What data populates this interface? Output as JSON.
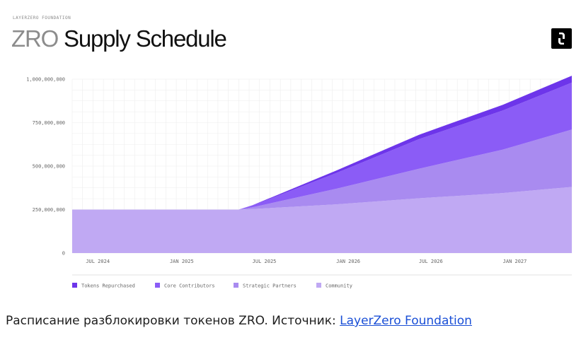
{
  "header": {
    "org": "LAYERZERO FOUNDATION",
    "title_light": "ZRO",
    "title_main": "Supply Schedule",
    "logo_icon": "layerzero-logo-icon"
  },
  "caption": {
    "text": "Расписание разблокировки токенов ZRO. Источник: ",
    "link": "LayerZero Foundation"
  },
  "chart_data": {
    "type": "area",
    "stacked": true,
    "x_tick_labels": [
      "JUL 2024",
      "JAN 2025",
      "JUL 2025",
      "JAN 2026",
      "JUL 2026",
      "JAN 2027"
    ],
    "x": [
      "2024-06",
      "2024-07",
      "2025-01",
      "2025-06",
      "2025-07",
      "2026-01",
      "2026-07",
      "2027-01",
      "2027-06"
    ],
    "y_ticks": [
      0,
      250000000,
      500000000,
      750000000,
      1000000000
    ],
    "y_tick_labels": [
      "0",
      "250,000,000",
      "500,000,000",
      "750,000,000",
      "1,000,000,000"
    ],
    "ylim": [
      0,
      1000000000
    ],
    "grid": true,
    "legend_position": "bottom-left",
    "series": [
      {
        "name": "Community",
        "color": "#c0a9f3",
        "values": [
          250000000,
          250000000,
          250000000,
          250000000,
          253000000,
          280000000,
          315000000,
          345000000,
          380000000
        ]
      },
      {
        "name": "Strategic Partners",
        "color": "#a98bf0",
        "values": [
          0,
          0,
          0,
          0,
          10000000,
          90000000,
          170000000,
          250000000,
          330000000
        ]
      },
      {
        "name": "Core Contributors",
        "color": "#8b5cf6",
        "values": [
          0,
          0,
          0,
          0,
          10000000,
          90000000,
          170000000,
          225000000,
          270000000
        ]
      },
      {
        "name": "Tokens Repurchased",
        "color": "#6d35ea",
        "values": [
          0,
          0,
          0,
          0,
          2000000,
          15000000,
          25000000,
          33000000,
          40000000
        ]
      }
    ],
    "legend_order": [
      "Tokens Repurchased",
      "Core Contributors",
      "Strategic Partners",
      "Community"
    ]
  }
}
